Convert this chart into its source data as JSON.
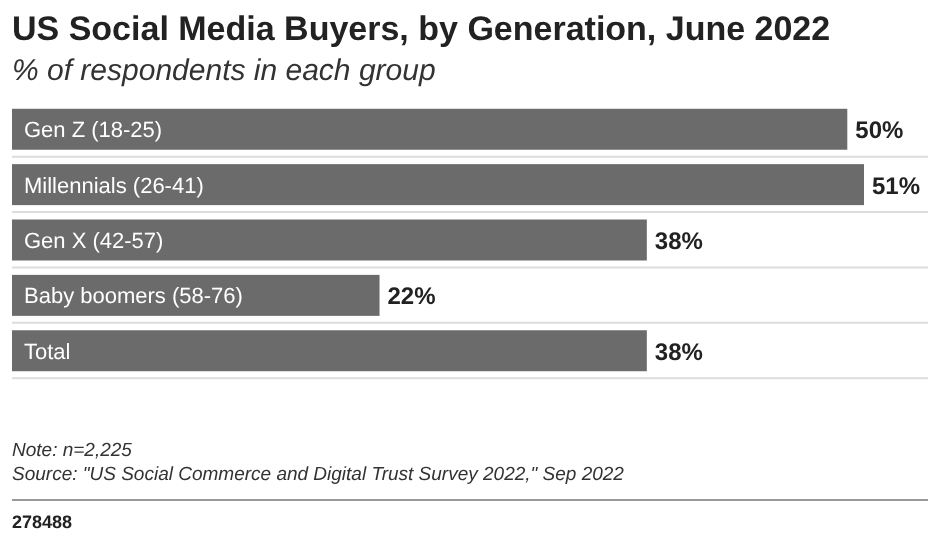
{
  "chart_data": {
    "type": "bar",
    "orientation": "horizontal",
    "title": "US Social Media Buyers, by Generation, June 2022",
    "subtitle": "% of respondents in each group",
    "categories": [
      "Gen Z (18-25)",
      "Millennials (26-41)",
      "Gen X (42-57)",
      "Baby boomers (58-76)",
      "Total"
    ],
    "values": [
      50,
      51,
      38,
      22,
      38
    ],
    "color": "#6b6b6b",
    "value_labels": [
      "50%",
      "51%",
      "38%",
      "22%",
      "38%"
    ],
    "annotations": [
      "Note: n=2,225",
      "Source: \"US Social Commerce and Digital Trust Survey 2022,\" Sep 2022",
      "278488"
    ]
  }
}
